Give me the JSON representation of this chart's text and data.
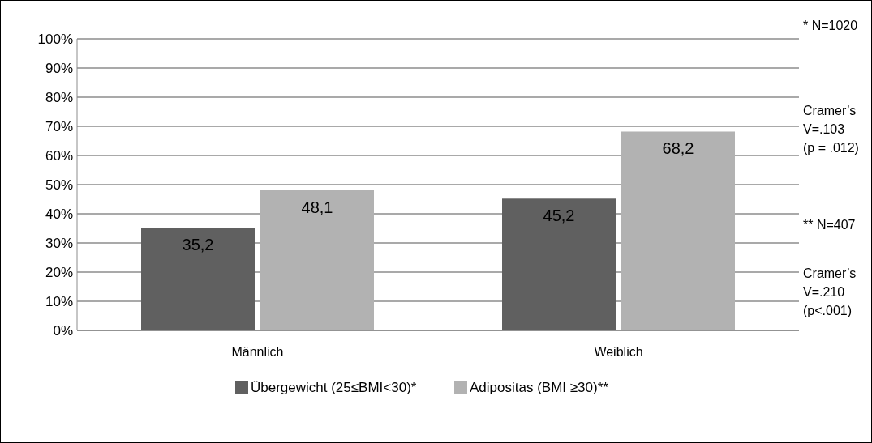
{
  "chart_data": {
    "type": "bar",
    "categories": [
      "Männlich",
      "Weiblich"
    ],
    "series": [
      {
        "name": "Übergewicht (25≤BMI<30)*",
        "color": "#606060",
        "values": [
          35.2,
          45.2
        ],
        "value_labels": [
          "35,2",
          "45,2"
        ]
      },
      {
        "name": "Adipositas (BMI ≥30)**",
        "color": "#b2b2b2",
        "values": [
          48.1,
          68.2
        ],
        "value_labels": [
          "48,1",
          "68,2"
        ]
      }
    ],
    "ylim": [
      0,
      100
    ],
    "yticks": [
      {
        "value": 0,
        "label": "0%"
      },
      {
        "value": 10,
        "label": "10%"
      },
      {
        "value": 20,
        "label": "20%"
      },
      {
        "value": 30,
        "label": "30%"
      },
      {
        "value": 40,
        "label": "40%"
      },
      {
        "value": 50,
        "label": "50%"
      },
      {
        "value": 60,
        "label": "60%"
      },
      {
        "value": 70,
        "label": "70%"
      },
      {
        "value": 80,
        "label": "80%"
      },
      {
        "value": 90,
        "label": "90%"
      },
      {
        "value": 100,
        "label": "100%"
      }
    ],
    "grid": "y",
    "legend": "bottom",
    "annotations": [
      "* N=1020",
      "Cramer’s\nV=.103\n(p = .012)",
      "** N=407",
      "Cramer’s\nV=.210\n(p<.001)"
    ]
  }
}
